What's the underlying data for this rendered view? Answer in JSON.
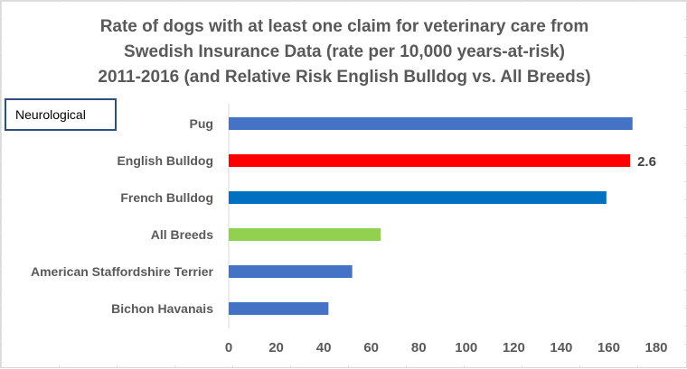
{
  "chart_data": {
    "type": "bar",
    "orientation": "horizontal",
    "title_lines": [
      "Rate of dogs with at least one claim for veterinary care from",
      "Swedish Insurance Data (rate per 10,000 years-at-risk)",
      "2011-2016 (and Relative Risk English Bulldog vs. All Breeds)"
    ],
    "label_box": "Neurological",
    "categories": [
      "Pug",
      "English Bulldog",
      "French Bulldog",
      "All Breeds",
      "American Staffordshire Terrier",
      "Bichon Havanais"
    ],
    "values": [
      170,
      169,
      159,
      64,
      52,
      42
    ],
    "bar_colors": [
      "#4472c4",
      "#ff0000",
      "#0070c0",
      "#92d050",
      "#4472c4",
      "#4472c4"
    ],
    "data_labels": [
      "",
      "2.6",
      "",
      "",
      "",
      ""
    ],
    "xlim": [
      0,
      180
    ],
    "xticks": [
      "0",
      "20",
      "40",
      "60",
      "80",
      "100",
      "120",
      "140",
      "160",
      "180"
    ],
    "grid": false,
    "xlabel": "",
    "ylabel": ""
  }
}
